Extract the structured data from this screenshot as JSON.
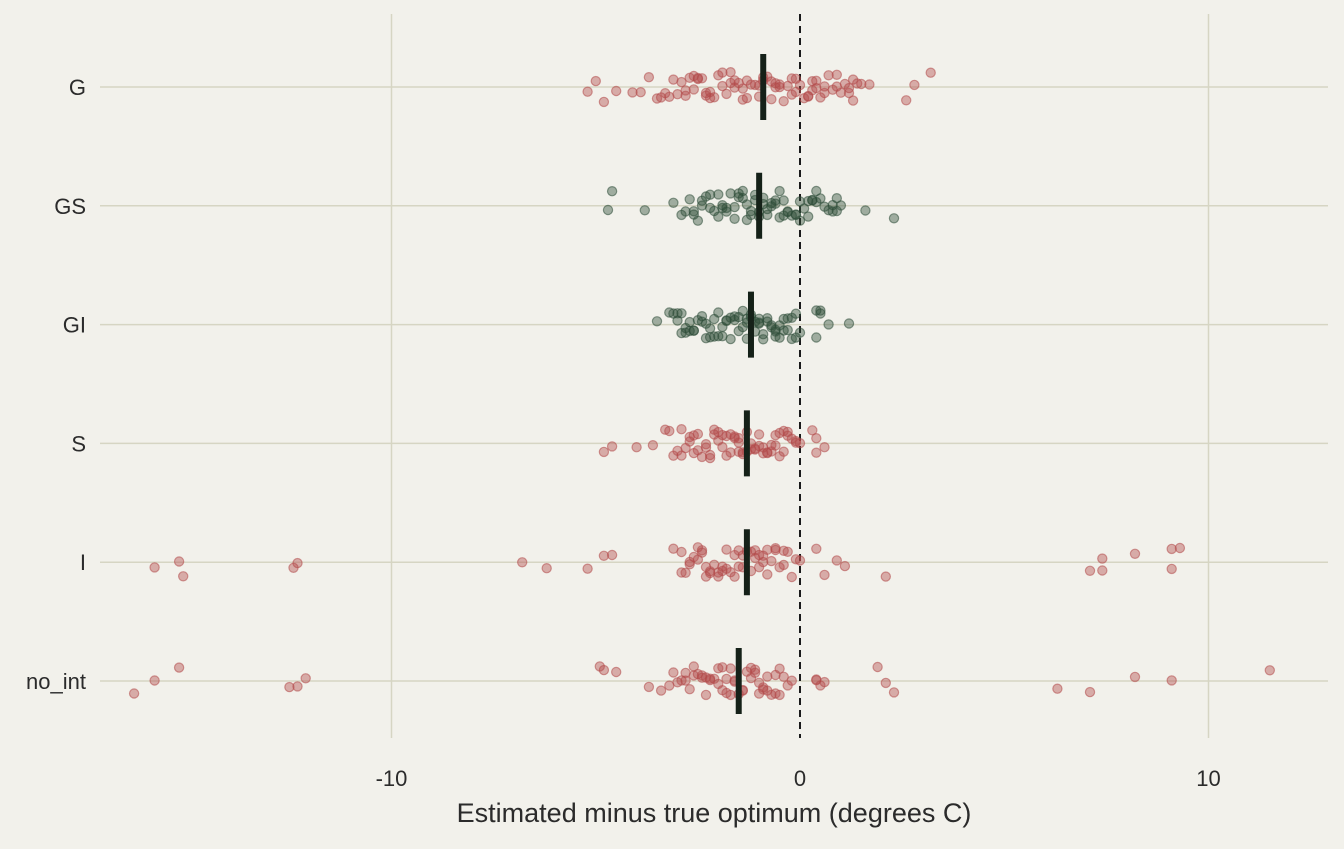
{
  "colors": {
    "background": "#f2f1eb",
    "grid": "#d6d5c3",
    "red_point": "#b24a4a",
    "green_point": "#2e4d38",
    "median_bar": "#152118",
    "zero_line": "#1a1a1a"
  },
  "chart_data": {
    "type": "scatter",
    "orientation": "horizontal-strip",
    "title": "",
    "xlabel": "Estimated minus true optimum (degrees C)",
    "ylabel": "",
    "xlim": [
      -17.2,
      13
    ],
    "x_ticks": [
      -10,
      0,
      10
    ],
    "x_tick_labels": [
      "-10",
      "0",
      "10"
    ],
    "grid": true,
    "reference_line": {
      "x": 0,
      "style": "dashed"
    },
    "categories": [
      "G",
      "GS",
      "GI",
      "S",
      "I",
      "no_int"
    ],
    "series": [
      {
        "category": "G",
        "color": "red",
        "median": -0.9,
        "values": [
          -5.2,
          -5.0,
          -4.5,
          -4.8,
          -4.1,
          -3.9,
          -3.7,
          -3.5,
          -3.3,
          -3.2,
          -3.0,
          -2.9,
          -2.8,
          -2.7,
          -2.6,
          -2.5,
          -2.4,
          -2.3,
          -2.2,
          -2.1,
          -2.0,
          -1.9,
          -1.8,
          -1.7,
          -1.6,
          -1.5,
          -1.4,
          -1.3,
          -1.2,
          -1.1,
          -1.0,
          -0.9,
          -0.8,
          -0.7,
          -0.6,
          -0.5,
          -0.4,
          -0.3,
          -0.2,
          -0.1,
          0.0,
          0.1,
          0.2,
          0.3,
          0.4,
          0.5,
          0.6,
          0.7,
          0.8,
          0.9,
          1.0,
          1.1,
          1.2,
          1.3,
          1.4,
          1.5,
          1.7,
          2.6,
          2.8,
          3.2,
          -3.1,
          -2.6,
          -2.2,
          -1.7,
          -1.3,
          -0.9,
          -0.5,
          -0.2,
          0.2,
          0.6,
          1.2,
          -3.4,
          -2.8,
          -2.3,
          -1.9,
          -1.4,
          -1.0,
          -0.6,
          -0.1,
          0.4,
          0.9,
          1.3,
          -2.5,
          -1.6,
          -0.7,
          0.3
        ]
      },
      {
        "category": "GS",
        "color": "green",
        "median": -1.0,
        "values": [
          -4.6,
          -4.7,
          -3.8,
          -3.1,
          -2.9,
          -2.8,
          -2.7,
          -2.6,
          -2.5,
          -2.4,
          -2.3,
          -2.2,
          -2.1,
          -2.0,
          -1.9,
          -1.8,
          -1.7,
          -1.6,
          -1.5,
          -1.4,
          -1.3,
          -1.2,
          -1.1,
          -1.0,
          -0.9,
          -0.8,
          -0.7,
          -0.6,
          -0.5,
          -0.4,
          -0.3,
          -0.2,
          -0.1,
          0.0,
          0.1,
          0.2,
          0.3,
          0.4,
          0.5,
          0.6,
          0.7,
          0.8,
          0.9,
          1.0,
          1.6,
          2.3,
          -2.6,
          -2.2,
          -1.8,
          -1.5,
          -1.2,
          -0.9,
          -0.6,
          -0.3,
          0.0,
          0.4,
          0.9,
          -2.4,
          -2.0,
          -1.6,
          -1.3,
          -1.0,
          -0.7,
          -0.4,
          -0.1,
          0.3,
          0.8,
          -1.9,
          -1.1,
          -0.5,
          0.2,
          -1.4,
          -0.8
        ]
      },
      {
        "category": "GI",
        "color": "green",
        "median": -1.2,
        "values": [
          -3.5,
          -3.2,
          -3.1,
          -3.0,
          -2.9,
          -2.8,
          -2.7,
          -2.6,
          -2.5,
          -2.4,
          -2.3,
          -2.2,
          -2.1,
          -2.0,
          -1.9,
          -1.8,
          -1.7,
          -1.6,
          -1.5,
          -1.4,
          -1.3,
          -1.2,
          -1.1,
          -1.0,
          -0.9,
          -0.8,
          -0.7,
          -0.6,
          -0.5,
          -0.4,
          -0.3,
          -0.2,
          -0.1,
          0.0,
          0.4,
          0.5,
          0.7,
          1.2,
          -3.0,
          -2.6,
          -2.2,
          -1.9,
          -1.6,
          -1.3,
          -1.0,
          -0.7,
          -0.4,
          -0.1,
          0.4,
          -2.8,
          -2.4,
          -2.0,
          -1.7,
          -1.4,
          -1.1,
          -0.8,
          -0.5,
          -0.2,
          0.5,
          -2.7,
          -1.8,
          -1.2,
          -0.6,
          -0.3,
          -2.3,
          -1.5,
          -0.9,
          -2.9,
          -1.0,
          -0.6,
          -2.1,
          -1.3
        ]
      },
      {
        "category": "S",
        "color": "red",
        "median": -1.3,
        "values": [
          -4.8,
          -4.6,
          -4.0,
          -3.6,
          -3.2,
          -3.1,
          -3.0,
          -2.9,
          -2.8,
          -2.7,
          -2.6,
          -2.5,
          -2.4,
          -2.3,
          -2.2,
          -2.1,
          -2.0,
          -1.9,
          -1.8,
          -1.7,
          -1.6,
          -1.5,
          -1.4,
          -1.3,
          -1.2,
          -1.1,
          -1.0,
          -0.9,
          -0.8,
          -0.7,
          -0.6,
          -0.5,
          -0.4,
          -0.3,
          -0.2,
          -0.1,
          0.0,
          0.3,
          0.4,
          0.6,
          -2.9,
          -2.5,
          -2.1,
          -1.8,
          -1.5,
          -1.2,
          -0.9,
          -0.6,
          -0.3,
          0.4,
          -2.7,
          -2.3,
          -1.9,
          -1.6,
          -1.3,
          -1.0,
          -0.7,
          -0.4,
          -0.1,
          -3.3,
          -2.2,
          -1.4,
          -0.8,
          -2.6,
          -1.7,
          -1.1,
          -0.5,
          -2.0,
          -1.5
        ]
      },
      {
        "category": "I",
        "color": "red",
        "median": -1.3,
        "values": [
          -15.1,
          -15.8,
          -15.2,
          -12.4,
          -12.3,
          -6.8,
          -6.2,
          -5.2,
          -4.8,
          -4.6,
          -3.1,
          -2.9,
          -2.8,
          -2.7,
          -2.6,
          -2.5,
          -2.4,
          -2.3,
          -2.2,
          -2.1,
          -2.0,
          -1.9,
          -1.8,
          -1.7,
          -1.6,
          -1.5,
          -1.4,
          -1.3,
          -1.2,
          -1.1,
          -1.0,
          -0.9,
          -0.8,
          -0.7,
          -0.6,
          -0.5,
          -0.4,
          -0.3,
          -0.2,
          -0.1,
          0.0,
          0.4,
          0.6,
          0.9,
          1.1,
          2.1,
          7.1,
          7.4,
          7.4,
          8.2,
          9.1,
          9.1,
          9.3,
          -2.9,
          -2.5,
          -2.2,
          -1.9,
          -1.6,
          -1.2,
          -0.8,
          -0.4,
          -2.7,
          -2.3,
          -1.8,
          -1.4,
          -1.0,
          -0.6,
          -2.4,
          -1.5,
          -0.9,
          -2.0,
          -1.1
        ]
      },
      {
        "category": "no_int",
        "color": "red",
        "median": -1.5,
        "values": [
          -15.8,
          -16.3,
          -15.2,
          -12.5,
          -12.3,
          -12.1,
          -4.9,
          -4.8,
          -4.5,
          -3.7,
          -3.4,
          -3.2,
          -3.1,
          -2.9,
          -2.8,
          -2.7,
          -2.6,
          -2.5,
          -2.4,
          -2.3,
          -2.2,
          -2.1,
          -2.0,
          -1.9,
          -1.8,
          -1.7,
          -1.6,
          -1.5,
          -1.4,
          -1.3,
          -1.2,
          -1.1,
          -1.0,
          -0.9,
          -0.8,
          -0.7,
          -0.6,
          -0.5,
          -0.4,
          -0.3,
          -0.2,
          0.4,
          0.4,
          0.5,
          0.6,
          1.9,
          2.1,
          2.3,
          6.3,
          7.1,
          8.2,
          9.1,
          11.5,
          -3.0,
          -2.6,
          -2.2,
          -1.9,
          -1.6,
          -1.2,
          -0.8,
          -0.5,
          -2.8,
          -2.4,
          -1.8,
          -1.4,
          -1.0,
          -0.6,
          -2.3,
          -1.7,
          -1.1,
          -2.0,
          -0.9
        ]
      }
    ]
  }
}
